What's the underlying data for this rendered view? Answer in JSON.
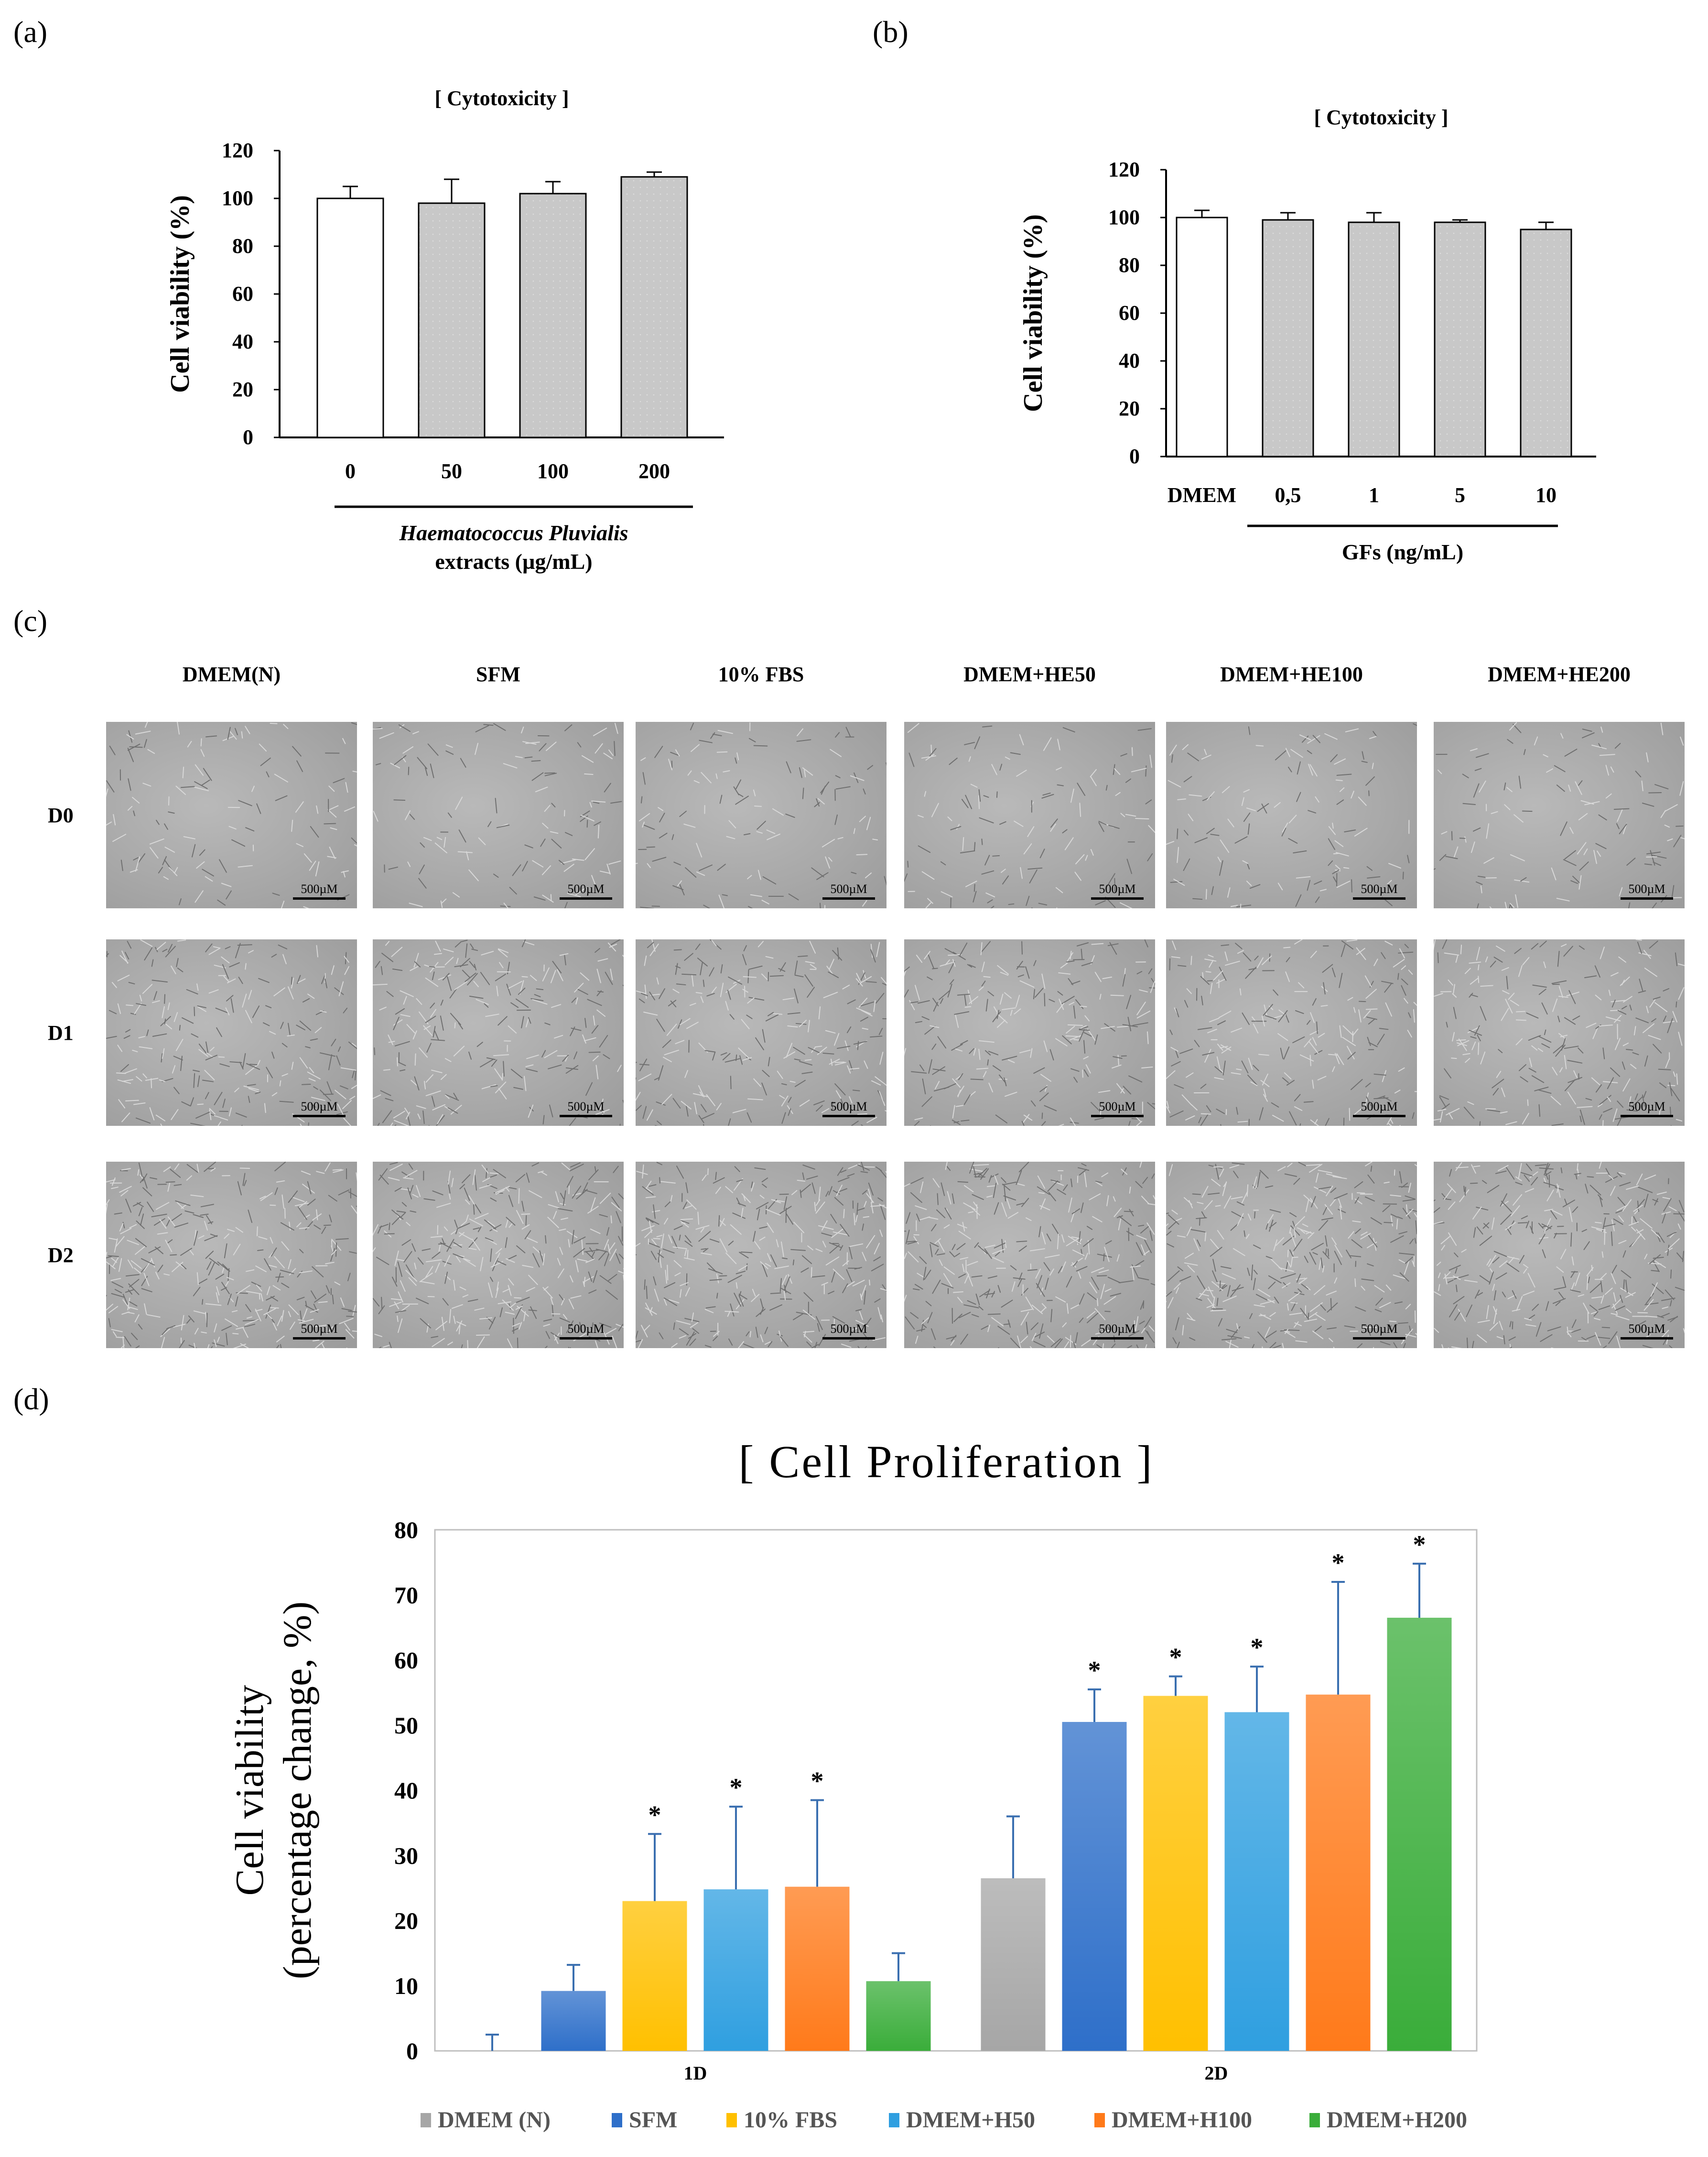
{
  "panels": {
    "a": "(a)",
    "b": "(b)",
    "c": "(c)",
    "d": "(d)"
  },
  "chart_data": [
    {
      "id": "a",
      "type": "bar",
      "title": "[ Cytotoxicity ]",
      "ylabel": "Cell viability (%)",
      "xlabel_line1": "Haematococcus Pluvialis",
      "xlabel_line2": "extracts (µg/mL)",
      "categories": [
        "0",
        "50",
        "100",
        "200"
      ],
      "values": [
        100,
        98,
        102,
        109
      ],
      "errors": [
        5,
        10,
        5,
        2
      ],
      "bar_colors": [
        "#ffffff",
        "#c8c8c8",
        "#c8c8c8",
        "#c8c8c8"
      ],
      "ylim": [
        0,
        120
      ],
      "yticks": [
        0,
        20,
        40,
        60,
        80,
        100,
        120
      ]
    },
    {
      "id": "b",
      "type": "bar",
      "title": "[ Cytotoxicity ]",
      "ylabel": "Cell viability (%)",
      "xlabel_line1": "GFs (ng/mL)",
      "categories": [
        "DMEM",
        "0,5",
        "1",
        "5",
        "10"
      ],
      "values": [
        100,
        99,
        98,
        98,
        95
      ],
      "errors": [
        3,
        3,
        4,
        1,
        3
      ],
      "bar_colors": [
        "#ffffff",
        "#c8c8c8",
        "#c8c8c8",
        "#c8c8c8",
        "#c8c8c8"
      ],
      "ylim": [
        0,
        120
      ],
      "yticks": [
        0,
        20,
        40,
        60,
        80,
        100,
        120
      ]
    },
    {
      "id": "d",
      "type": "bar",
      "title": "[ Cell Proliferation ]",
      "ylabel_line1": "Cell viability",
      "ylabel_line2": "(percentage change, %)",
      "categories": [
        "1D",
        "2D"
      ],
      "ylim": [
        0,
        80
      ],
      "yticks": [
        0,
        10,
        20,
        30,
        40,
        50,
        60,
        70,
        80
      ],
      "series": [
        {
          "name": "DMEM (N)",
          "color": "#a6a6a6",
          "values": [
            0,
            26.5
          ],
          "errors": [
            2.5,
            9.5
          ],
          "significant": [
            false,
            false
          ]
        },
        {
          "name": "SFM",
          "color": "#2e6fc9",
          "values": [
            9.2,
            50.5
          ],
          "errors": [
            4,
            5
          ],
          "significant": [
            false,
            true
          ]
        },
        {
          "name": "10% FBS",
          "color": "#ffc000",
          "values": [
            23,
            54.5
          ],
          "errors": [
            10.3,
            3
          ],
          "significant": [
            true,
            true
          ]
        },
        {
          "name": "DMEM+H50",
          "color": "#2f9fe0",
          "values": [
            24.8,
            52
          ],
          "errors": [
            12.7,
            7
          ],
          "significant": [
            true,
            true
          ]
        },
        {
          "name": "DMEM+H100",
          "color": "#ff7a1a",
          "values": [
            25.2,
            54.7
          ],
          "errors": [
            13.3,
            17.3
          ],
          "significant": [
            true,
            true
          ]
        },
        {
          "name": "DMEM+H200",
          "color": "#3aad3a",
          "values": [
            10.7,
            66.5
          ],
          "errors": [
            4.3,
            8.3
          ],
          "significant": [
            false,
            true
          ]
        }
      ],
      "significance_mark": "*"
    }
  ],
  "micrographs": {
    "columns": [
      "DMEM(N)",
      "SFM",
      "10% FBS",
      "DMEM+HE50",
      "DMEM+HE100",
      "DMEM+HE200"
    ],
    "rows": [
      "D0",
      "D1",
      "D2"
    ],
    "scale_label": "500µM"
  }
}
